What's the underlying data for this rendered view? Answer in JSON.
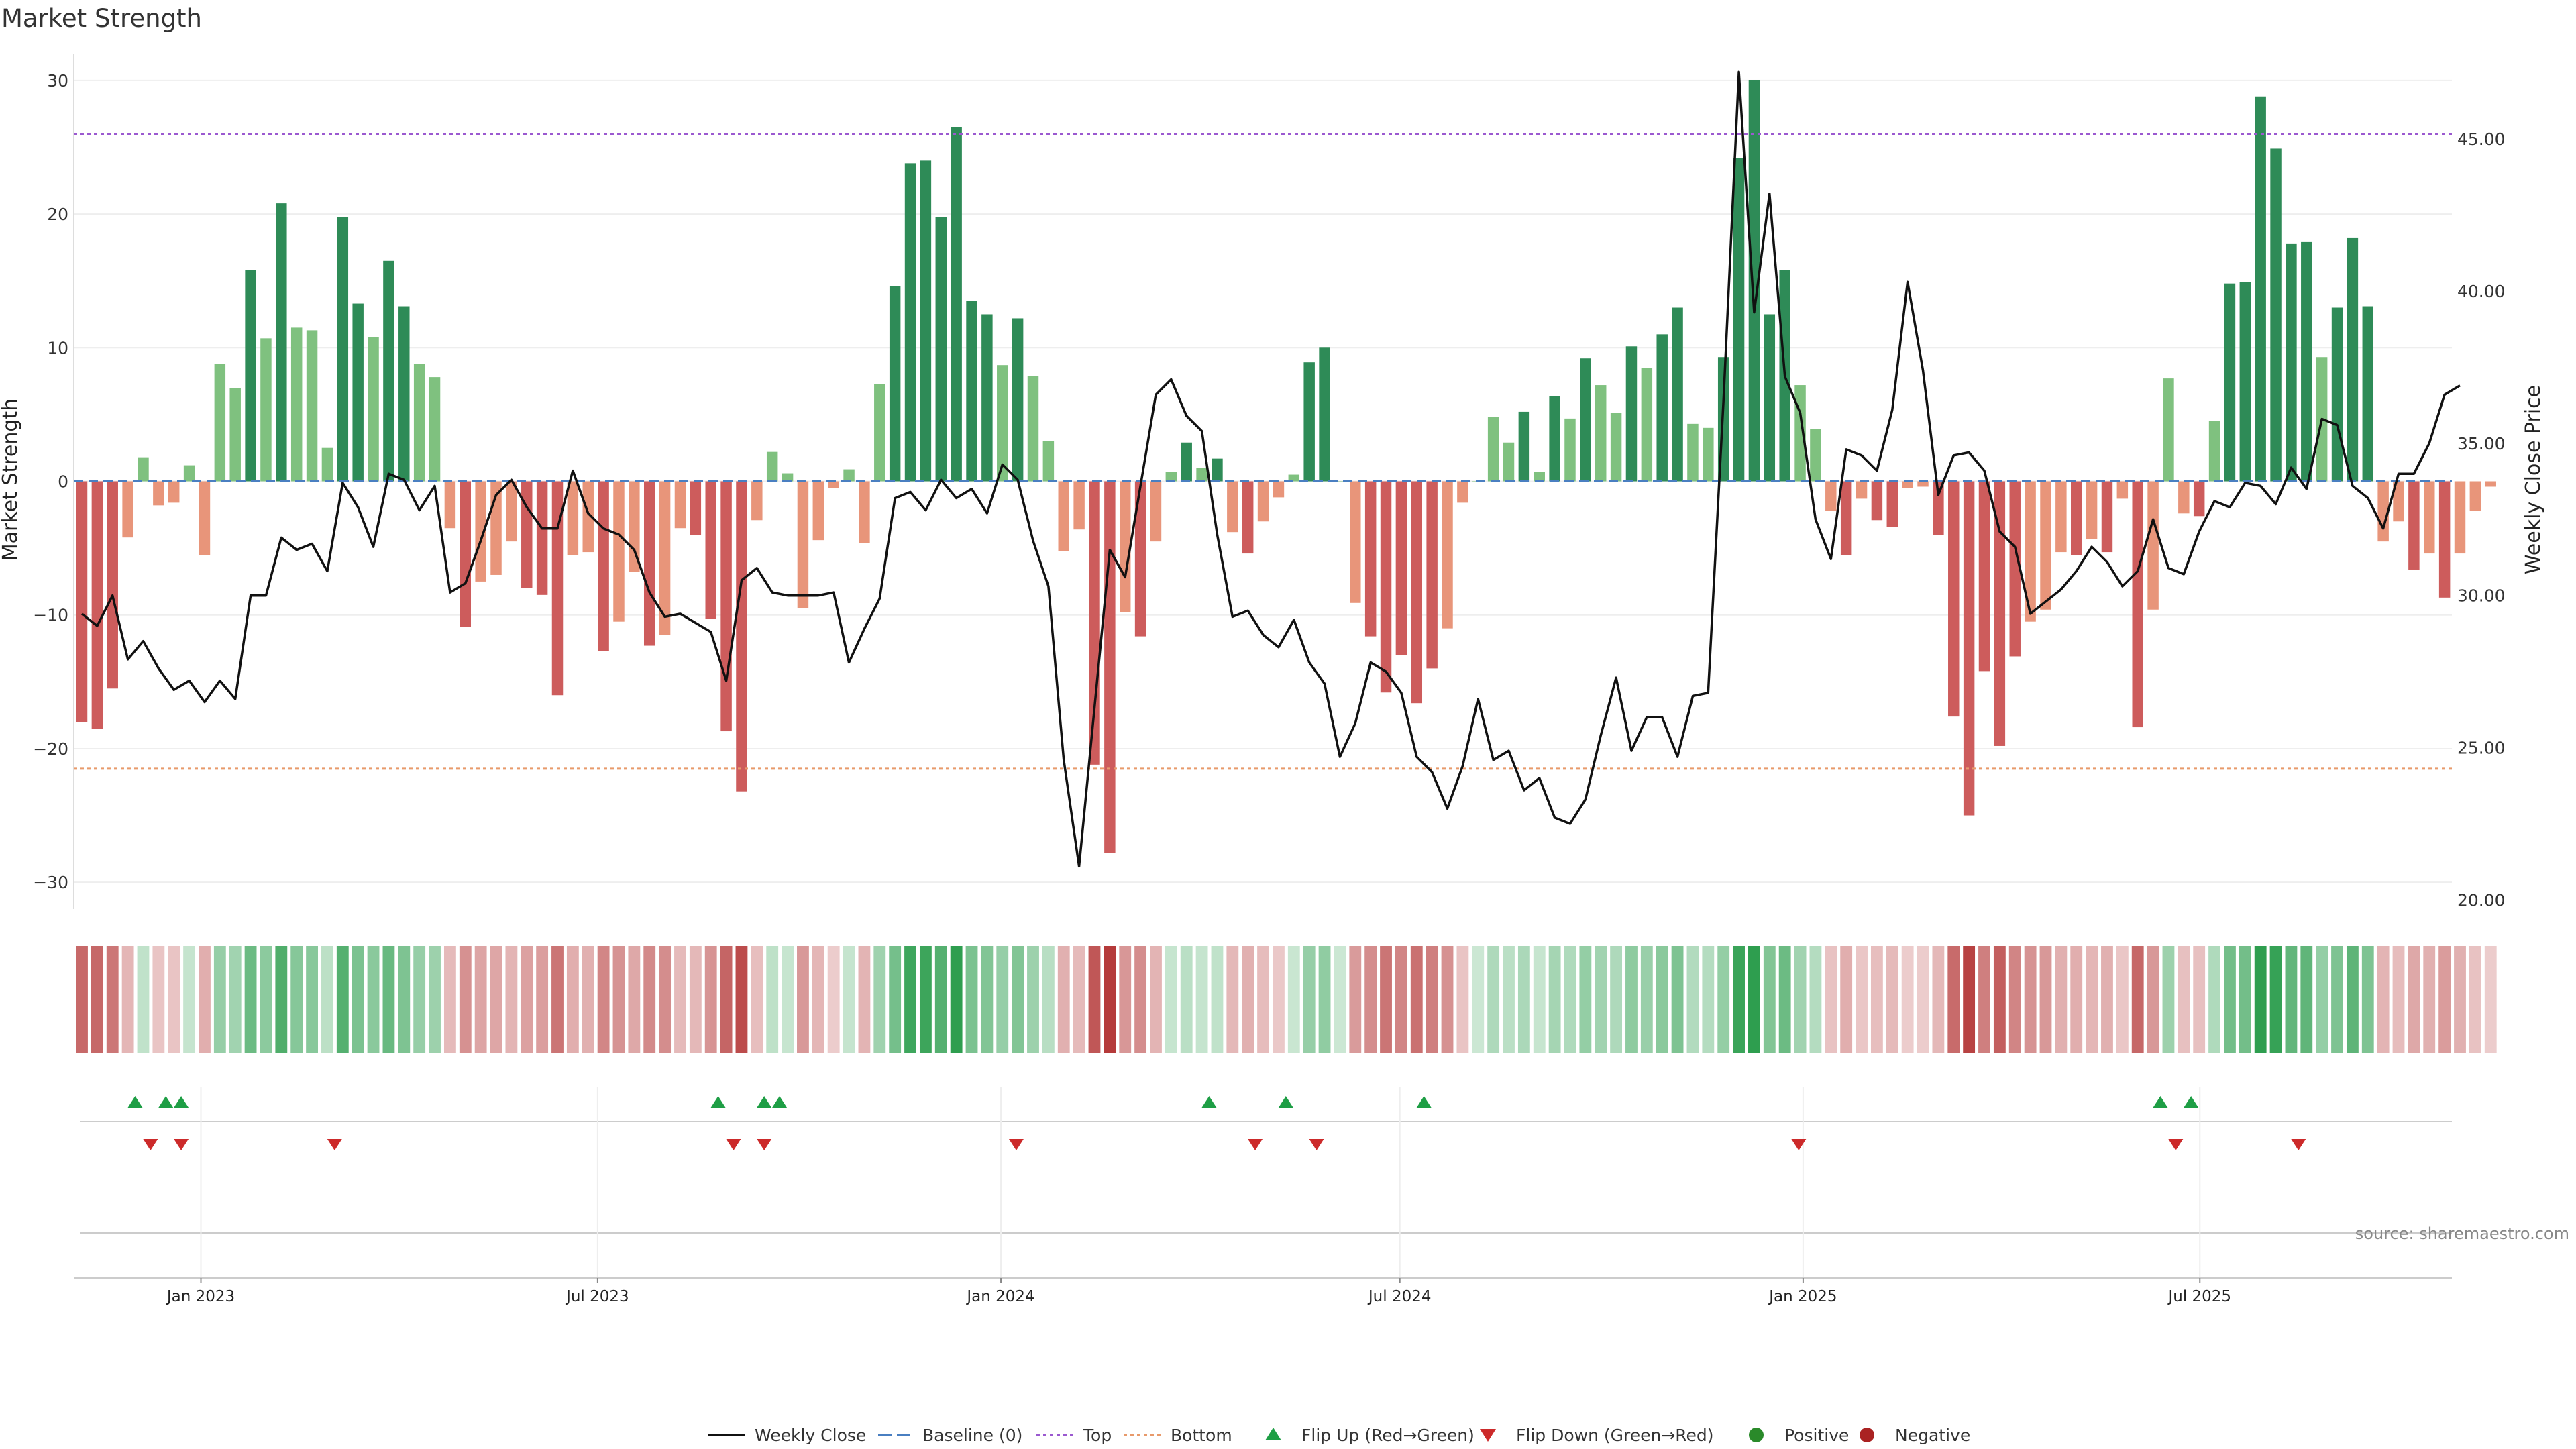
{
  "chart_data": {
    "type": "bar",
    "title": "Market Strength",
    "ylabel": "Market Strength",
    "y2label": "Weekly Close Price",
    "ylim": [
      -32,
      32
    ],
    "y2lim": [
      19.7,
      47.8
    ],
    "yticks": [
      30,
      20,
      10,
      0,
      -10,
      -20,
      -30
    ],
    "y2ticks": [
      "45.00",
      "40.00",
      "35.00",
      "30.00",
      "25.00",
      "20.00"
    ],
    "y2tick_values": [
      45,
      40,
      35,
      30,
      25,
      20
    ],
    "xlim": [
      "2022-11-04",
      "2025-10-24"
    ],
    "date_ticks": [
      {
        "date": "2023-01-01",
        "label": "Jan 2023"
      },
      {
        "date": "2023-07-01",
        "label": "Jul 2023"
      },
      {
        "date": "2024-01-01",
        "label": "Jan 2024"
      },
      {
        "date": "2024-07-01",
        "label": "Jul 2024"
      },
      {
        "date": "2025-01-01",
        "label": "Jan 2025"
      },
      {
        "date": "2025-07-01",
        "label": "Jul 2025"
      }
    ],
    "top_line": 26,
    "bottom_line": -21.5,
    "start_week": "2022-11-04",
    "strength": [
      -18,
      -18.5,
      -15.5,
      -4.2,
      1.8,
      -1.8,
      -1.6,
      1.2,
      -5.5,
      8.8,
      7,
      15.8,
      10.7,
      20.8,
      11.5,
      11.3,
      2.5,
      19.8,
      13.3,
      10.8,
      16.5,
      13.1,
      8.8,
      7.8,
      -3.5,
      -10.9,
      -7.5,
      -7,
      -4.5,
      -8,
      -8.5,
      -16,
      -5.5,
      -5.3,
      -12.7,
      -10.5,
      -6.8,
      -12.3,
      -11.5,
      -3.5,
      -4,
      -10.3,
      -18.7,
      -23.2,
      -2.9,
      2.2,
      0.6,
      -9.5,
      -4.4,
      -0.5,
      0.9,
      -4.6,
      7.3,
      14.6,
      23.8,
      24,
      19.8,
      26.5,
      13.5,
      12.5,
      8.7,
      12.2,
      7.9,
      3,
      -5.2,
      -3.6,
      -21.2,
      -27.8,
      -9.8,
      -11.6,
      -4.5,
      0.7,
      2.9,
      1,
      1.7,
      -3.8,
      -5.4,
      -3,
      -1.2,
      0.5,
      8.9,
      10,
      0,
      -9.1,
      -11.6,
      -15.8,
      -13,
      -16.6,
      -14,
      -11,
      -1.6,
      0,
      4.8,
      2.9,
      5.2,
      0.7,
      6.4,
      4.7,
      9.2,
      7.2,
      5.1,
      10.1,
      8.5,
      11,
      13,
      4.3,
      4,
      9.3,
      24.2,
      30,
      12.5,
      15.8,
      7.2,
      3.9,
      -2.2,
      -5.5,
      -1.3,
      -2.9,
      -3.4,
      -0.5,
      -0.4,
      -4,
      -17.6,
      -25,
      -14.2,
      -19.8,
      -13.1,
      -10.5,
      -9.6,
      -5.3,
      -5.5,
      -4.3,
      -5.3,
      -1.3,
      -18.4,
      -9.6,
      7.7,
      -2.4,
      -2.6,
      4.5,
      14.8,
      14.9,
      28.8,
      24.9,
      17.8,
      17.9,
      9.3,
      13,
      18.2,
      13.1,
      -4.5,
      -3,
      -6.6,
      -5.4,
      -8.7,
      -5.4,
      -2.2,
      -0.4
    ],
    "close": [
      29.4,
      29,
      30,
      27.9,
      28.5,
      27.6,
      26.9,
      27.2,
      26.5,
      27.2,
      26.6,
      30,
      30,
      31.9,
      31.5,
      31.7,
      30.8,
      33.7,
      32.9,
      31.6,
      34,
      33.8,
      32.8,
      33.6,
      30.1,
      30.4,
      31.8,
      33.3,
      33.8,
      32.9,
      32.2,
      32.2,
      34.1,
      32.7,
      32.2,
      32,
      31.5,
      30.1,
      29.3,
      29.4,
      29.1,
      28.8,
      27.2,
      30.5,
      30.9,
      30.1,
      30,
      30,
      30,
      30.1,
      27.8,
      28.9,
      29.9,
      33.2,
      33.4,
      32.8,
      33.8,
      33.2,
      33.5,
      32.7,
      34.3,
      33.8,
      31.8,
      30.3,
      24.6,
      21.1,
      26.3,
      31.5,
      30.6,
      33.6,
      36.6,
      37.1,
      35.9,
      35.4,
      32,
      29.3,
      29.5,
      28.7,
      28.3,
      29.2,
      27.8,
      27.1,
      24.7,
      25.8,
      27.8,
      27.5,
      26.8,
      24.7,
      24.2,
      23,
      24.4,
      26.6,
      24.6,
      24.9,
      23.6,
      24,
      22.7,
      22.5,
      23.3,
      25.4,
      27.3,
      24.9,
      26,
      26,
      24.7,
      26.7,
      26.8,
      36.4,
      47.2,
      39.3,
      43.2,
      37.2,
      36,
      32.5,
      31.2,
      34.8,
      34.6,
      34.1,
      36.1,
      40.3,
      37.4,
      33.3,
      34.6,
      34.7,
      34.1,
      32.1,
      31.6,
      29.4,
      29.8,
      30.2,
      30.8,
      31.6,
      31.1,
      30.3,
      30.8,
      32.5,
      30.9,
      30.7,
      32.1,
      33.1,
      32.9,
      33.7,
      33.6,
      33,
      34.2,
      33.5,
      35.8,
      35.6,
      33.6,
      33.2,
      32.2,
      34,
      34,
      35,
      36.6,
      36.9
    ],
    "flip_up_dates": [
      "2022-12-02",
      "2022-12-16",
      "2022-12-23",
      "2023-08-25",
      "2023-09-15",
      "2023-09-22",
      "2024-04-05",
      "2024-05-10",
      "2024-07-12",
      "2025-06-13",
      "2025-06-27"
    ],
    "flip_down_dates": [
      "2022-12-09",
      "2022-12-23",
      "2023-03-03",
      "2023-09-01",
      "2023-09-15",
      "2024-01-08",
      "2024-04-26",
      "2024-05-24",
      "2024-12-30",
      "2025-06-20",
      "2025-08-15"
    ]
  },
  "legend": [
    {
      "label": "Weekly Close",
      "icon": "line",
      "color": "#111111"
    },
    {
      "label": "Baseline (0)",
      "icon": "dash",
      "color": "#4a7fc1"
    },
    {
      "label": "Top",
      "icon": "dot",
      "color": "#9b59d0"
    },
    {
      "label": "Bottom",
      "icon": "dot",
      "color": "#e89a6b"
    },
    {
      "label": "Flip Up (Red→Green)",
      "icon": "triangle-up",
      "color": "#1e9e45"
    },
    {
      "label": "Flip Down (Green→Red)",
      "icon": "triangle-down",
      "color": "#cc2a2a"
    },
    {
      "label": "Positive",
      "icon": "circle",
      "color": "#2a8a2a"
    },
    {
      "label": "Negative",
      "icon": "circle",
      "color": "#aa2222"
    }
  ],
  "colors": {
    "strong_green": "#2e8b57",
    "light_green": "#7fc17f",
    "strong_red": "#cd5c5c",
    "light_red": "#e8957a",
    "price_line": "#111111",
    "top_line": "#9b59d0",
    "bottom_line": "#e89a6b",
    "baseline": "#4a7fc1",
    "grid": "#eeeeee"
  },
  "source": "source: sharemaestro.com"
}
